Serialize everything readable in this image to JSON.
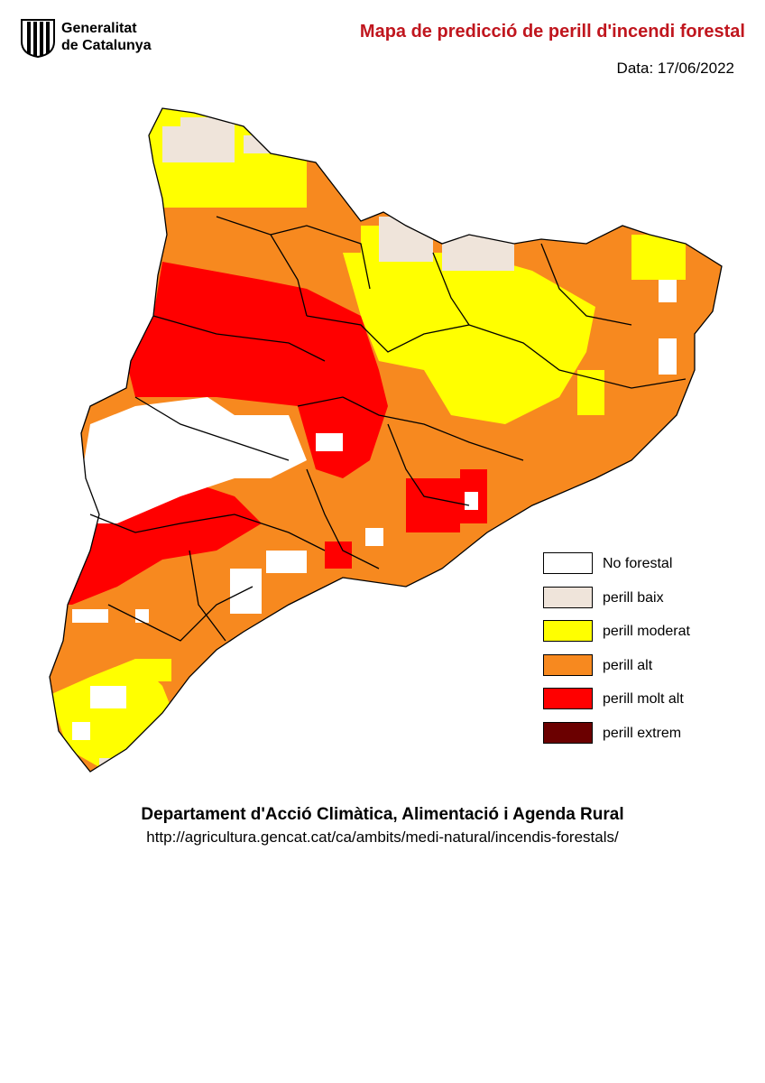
{
  "header": {
    "logo_line1": "Generalitat",
    "logo_line2": "de Catalunya",
    "title": "Mapa de predicció de perill d'incendi forestal",
    "date": "Data: 17/06/2022"
  },
  "legend": [
    {
      "label": "No forestal",
      "color": "#ffffff"
    },
    {
      "label": "perill baix",
      "color": "#efe4da"
    },
    {
      "label": "perill moderat",
      "color": "#ffff00"
    },
    {
      "label": "perill alt",
      "color": "#f7891f"
    },
    {
      "label": "perill molt alt",
      "color": "#ff0000"
    },
    {
      "label": "perill extrem",
      "color": "#6b0000"
    }
  ],
  "footer": {
    "department": "Departament d'Acció Climàtica, Alimentació i Agenda Rural",
    "url": "http://agricultura.gencat.cat/ca/ambits/medi-natural/incendis-forestals/"
  }
}
